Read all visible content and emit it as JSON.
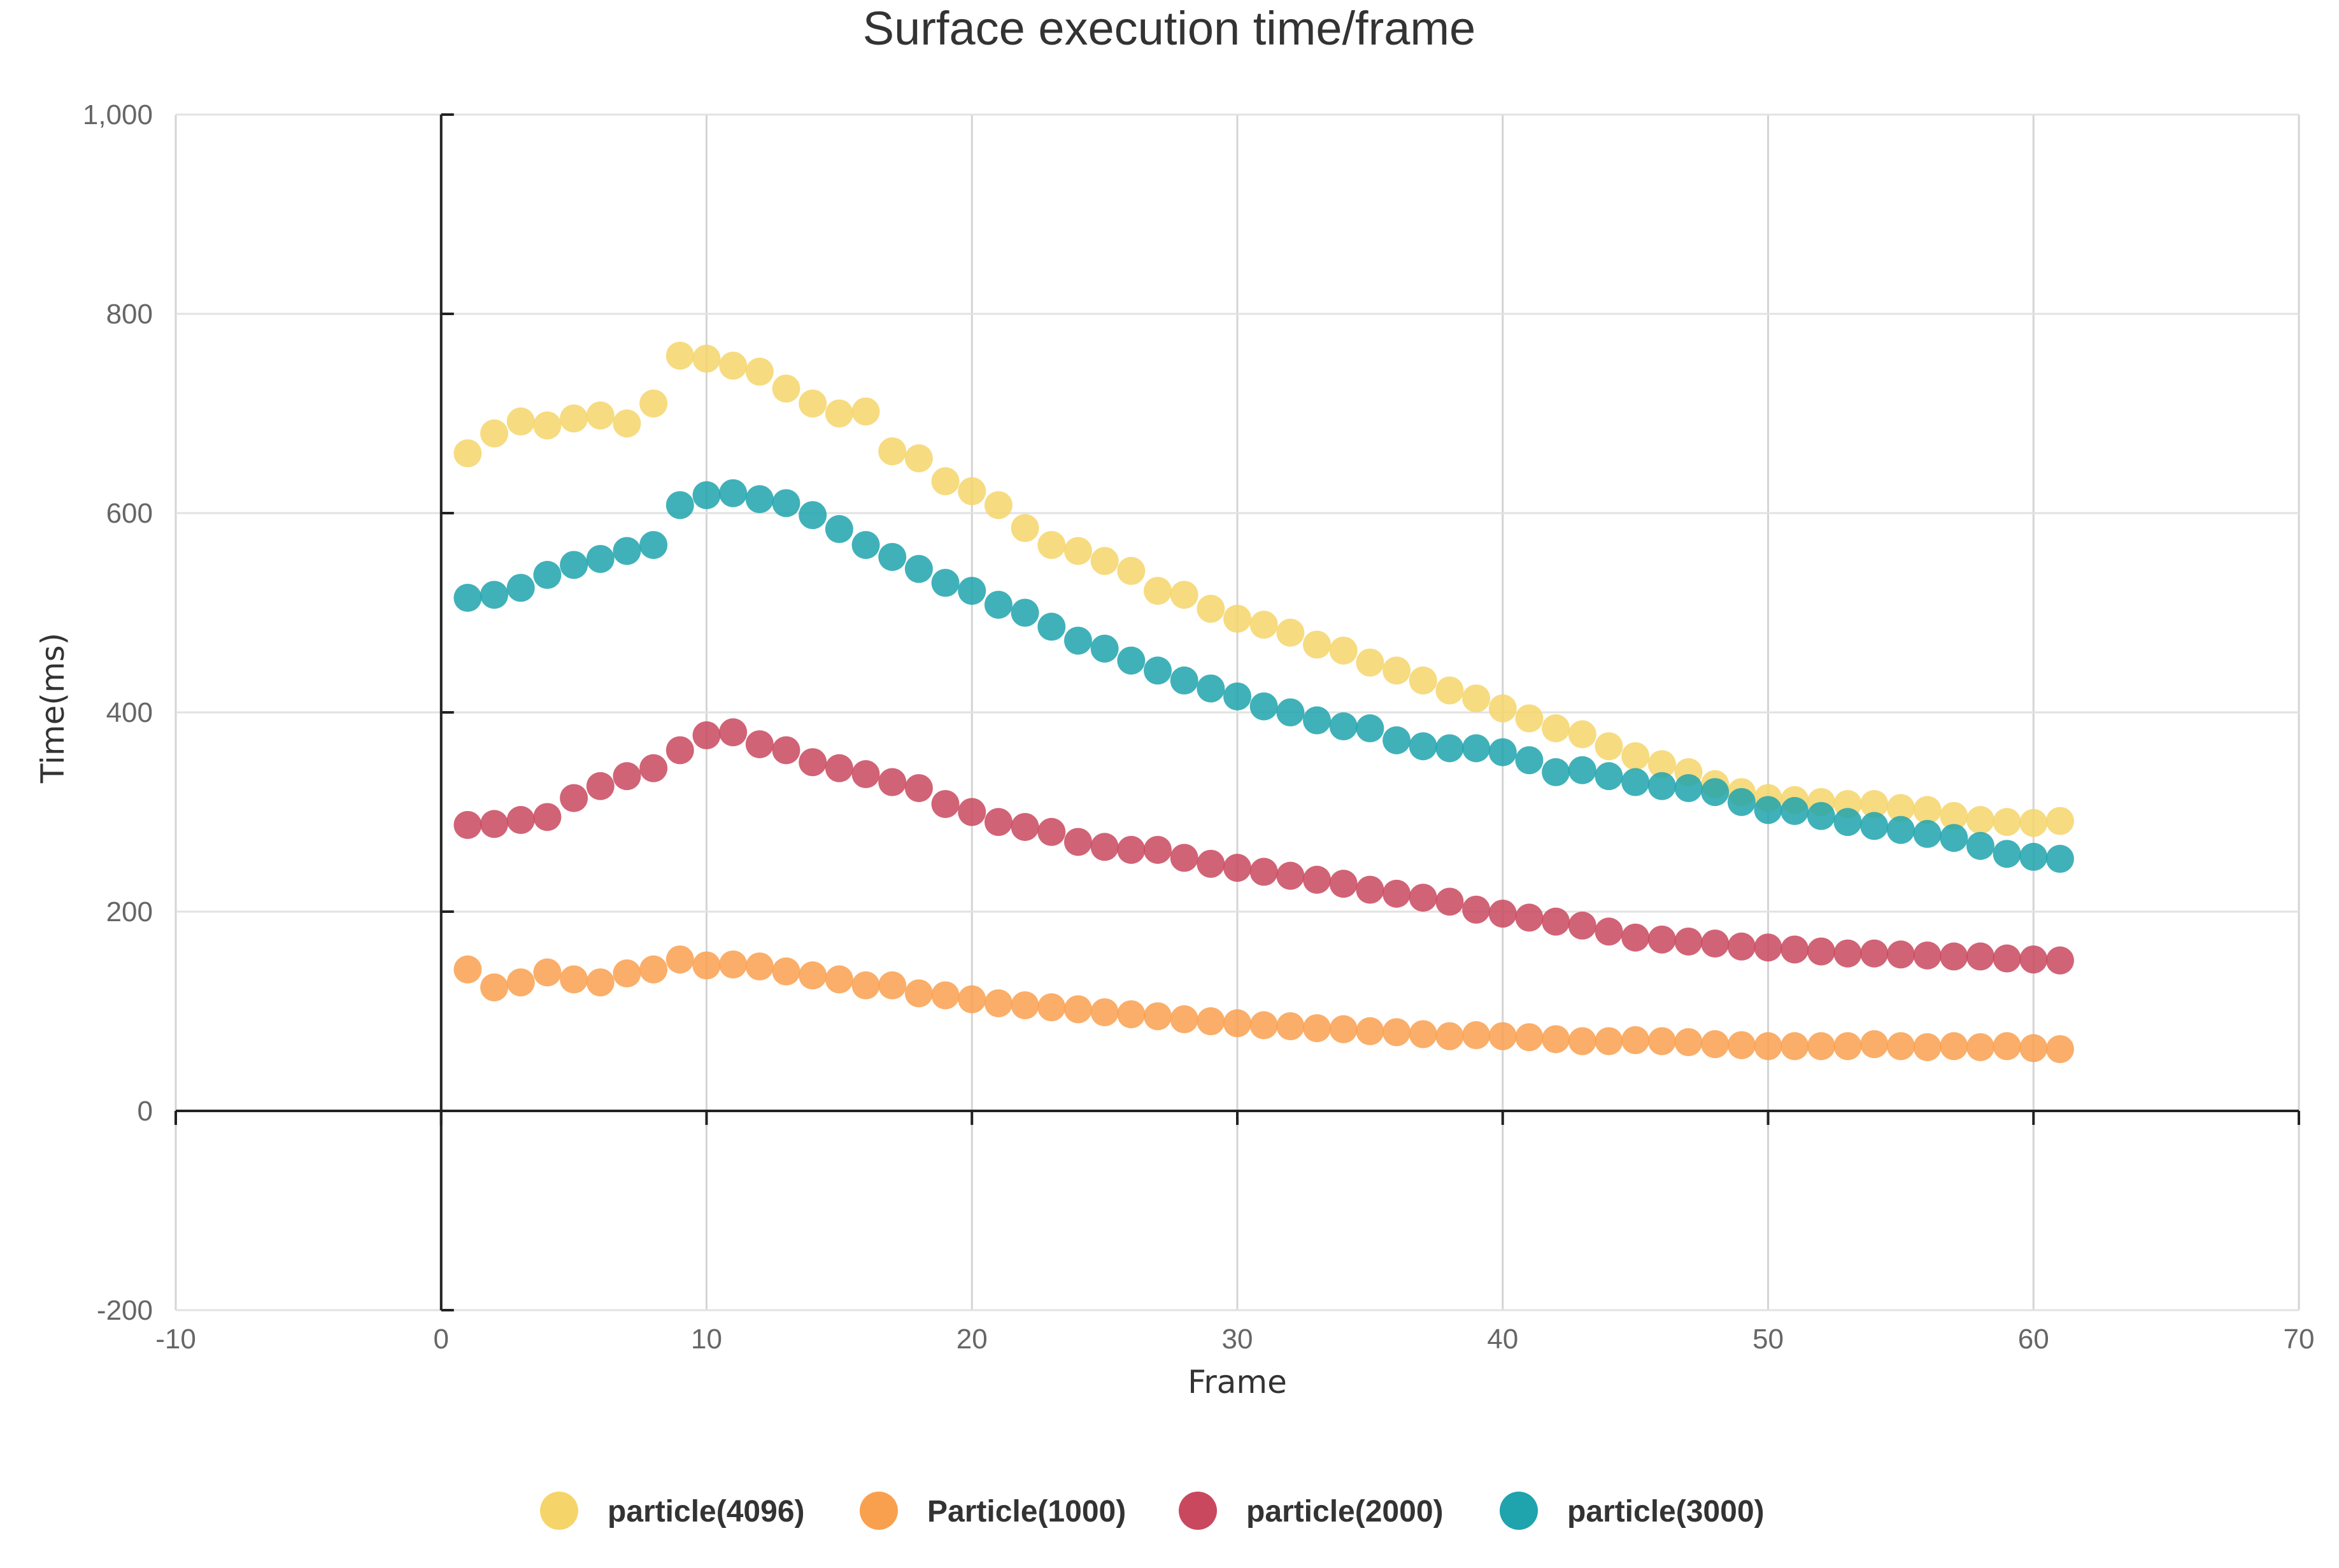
{
  "chart_data": {
    "type": "scatter",
    "title": "Surface execution time/frame",
    "xlabel": "Frame",
    "ylabel": "Time(ms)",
    "xlim": [
      -10,
      70
    ],
    "ylim": [
      -200,
      1000
    ],
    "xticks": [
      -10,
      0,
      10,
      20,
      30,
      40,
      50,
      60,
      70
    ],
    "xtick_labels": [
      "-10",
      "0",
      "10",
      "20",
      "30",
      "40",
      "50",
      "60",
      "70"
    ],
    "yticks": [
      -200,
      0,
      200,
      400,
      600,
      800,
      1000
    ],
    "ytick_labels": [
      "-200",
      "0",
      "200",
      "400",
      "600",
      "800",
      "1,000"
    ],
    "grid": true,
    "legend_position": "bottom-center",
    "x": [
      1,
      2,
      3,
      4,
      5,
      6,
      7,
      8,
      9,
      10,
      11,
      12,
      13,
      14,
      15,
      16,
      17,
      18,
      19,
      20,
      21,
      22,
      23,
      24,
      25,
      26,
      27,
      28,
      29,
      30,
      31,
      32,
      33,
      34,
      35,
      36,
      37,
      38,
      39,
      40,
      41,
      42,
      43,
      44,
      45,
      46,
      47,
      48,
      49,
      50,
      51,
      52,
      53,
      54,
      55,
      56,
      57,
      58,
      59,
      60,
      61
    ],
    "series": [
      {
        "name": "particle(4096)",
        "color": "#f5d56a",
        "values": [
          660,
          680,
          692,
          688,
          695,
          698,
          690,
          710,
          758,
          755,
          748,
          742,
          725,
          710,
          700,
          702,
          662,
          655,
          632,
          622,
          608,
          585,
          568,
          562,
          552,
          542,
          522,
          518,
          504,
          494,
          488,
          480,
          468,
          462,
          450,
          442,
          432,
          422,
          414,
          404,
          394,
          384,
          378,
          366,
          356,
          348,
          340,
          328,
          320,
          314,
          312,
          310,
          308,
          308,
          304,
          302,
          296,
          292,
          290,
          289,
          291
        ]
      },
      {
        "name": "Particle(1000)",
        "color": "#f9a04f",
        "values": [
          142,
          124,
          129,
          139,
          132,
          129,
          138,
          142,
          152,
          146,
          147,
          145,
          140,
          136,
          132,
          126,
          126,
          118,
          116,
          112,
          108,
          106,
          104,
          102,
          99,
          97,
          95,
          92,
          90,
          88,
          86,
          85,
          83,
          82,
          80,
          79,
          77,
          75,
          76,
          75,
          74,
          72,
          70,
          70,
          71,
          70,
          69,
          67,
          66,
          65,
          65,
          65,
          65,
          67,
          65,
          64,
          65,
          64,
          65,
          63,
          62
        ]
      },
      {
        "name": "particle(2000)",
        "color": "#c9485e",
        "values": [
          287,
          288,
          292,
          295,
          314,
          326,
          336,
          344,
          362,
          377,
          380,
          368,
          362,
          350,
          344,
          338,
          330,
          324,
          308,
          300,
          290,
          285,
          280,
          270,
          265,
          262,
          262,
          254,
          248,
          244,
          240,
          236,
          232,
          228,
          222,
          218,
          214,
          210,
          202,
          198,
          194,
          190,
          186,
          180,
          174,
          172,
          170,
          168,
          165,
          164,
          162,
          160,
          158,
          158,
          157,
          156,
          155,
          155,
          153,
          152,
          151
        ]
      },
      {
        "name": "particle(3000)",
        "color": "#1fa3ad",
        "values": [
          515,
          518,
          525,
          538,
          548,
          554,
          562,
          568,
          608,
          618,
          620,
          614,
          610,
          598,
          584,
          568,
          556,
          544,
          530,
          522,
          508,
          500,
          486,
          472,
          464,
          452,
          442,
          432,
          424,
          416,
          406,
          400,
          392,
          386,
          384,
          372,
          366,
          364,
          364,
          360,
          352,
          340,
          342,
          336,
          330,
          326,
          324,
          320,
          310,
          302,
          301,
          296,
          290,
          286,
          282,
          278,
          274,
          266,
          258,
          255,
          253
        ]
      }
    ]
  }
}
